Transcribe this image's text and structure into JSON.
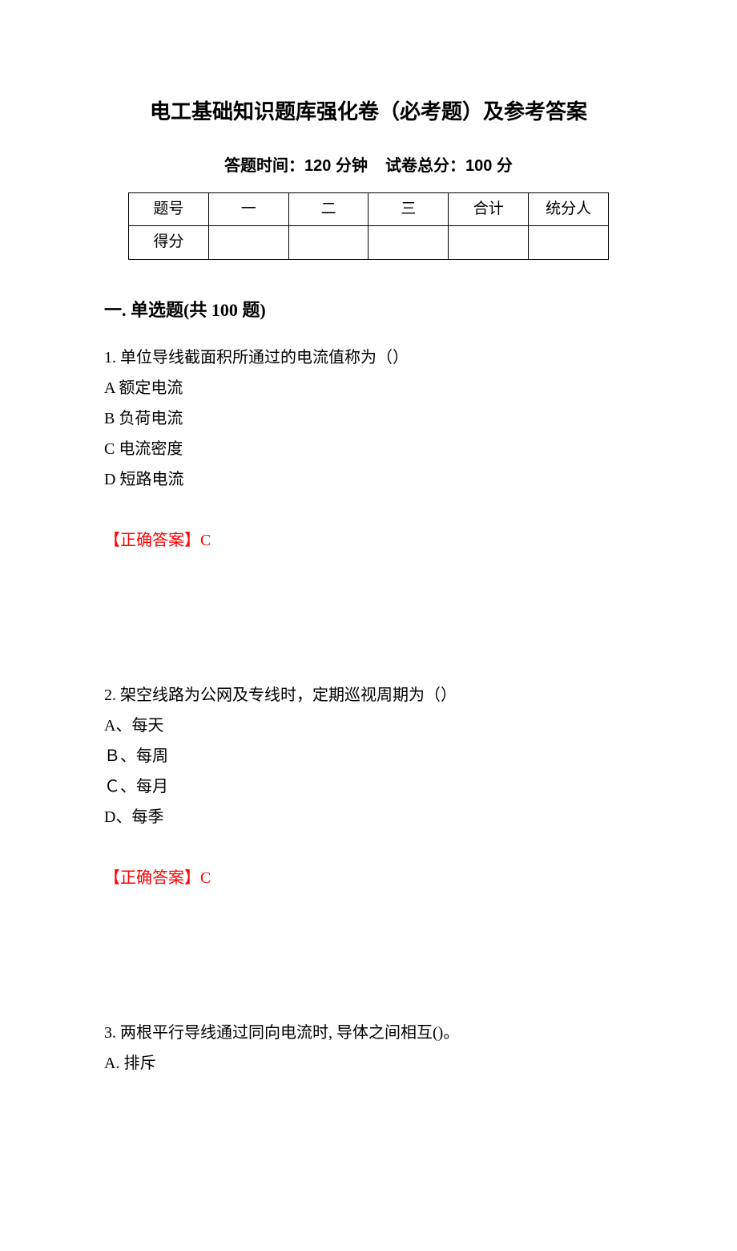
{
  "title": "电工基础知识题库强化卷（必考题）及参考答案",
  "subtitle_time_label": "答题时间：120 分钟",
  "subtitle_score_label": "试卷总分：100 分",
  "table": {
    "headers": [
      "题号",
      "一",
      "二",
      "三",
      "合计",
      "统分人"
    ],
    "row_label": "得分"
  },
  "section_heading": "一. 单选题(共 100 题)",
  "questions": [
    {
      "stem": "1. 单位导线截面积所通过的电流值称为（）",
      "options": [
        "A 额定电流",
        "B 负荷电流",
        "C 电流密度",
        "D 短路电流"
      ],
      "answer_label": "【正确答案】C"
    },
    {
      "stem": "2. 架空线路为公网及专线时，定期巡视周期为（）",
      "options": [
        "A、每天",
        "Ｂ、每周",
        "Ｃ、每月",
        "D、每季"
      ],
      "answer_label": "【正确答案】C"
    },
    {
      "stem": "3. 两根平行导线通过同向电流时, 导体之间相互()。",
      "options": [
        "A. 排斥"
      ],
      "answer_label": ""
    }
  ],
  "colors": {
    "text": "#000000",
    "answer": "#ff0000",
    "background": "#ffffff",
    "border": "#000000"
  }
}
